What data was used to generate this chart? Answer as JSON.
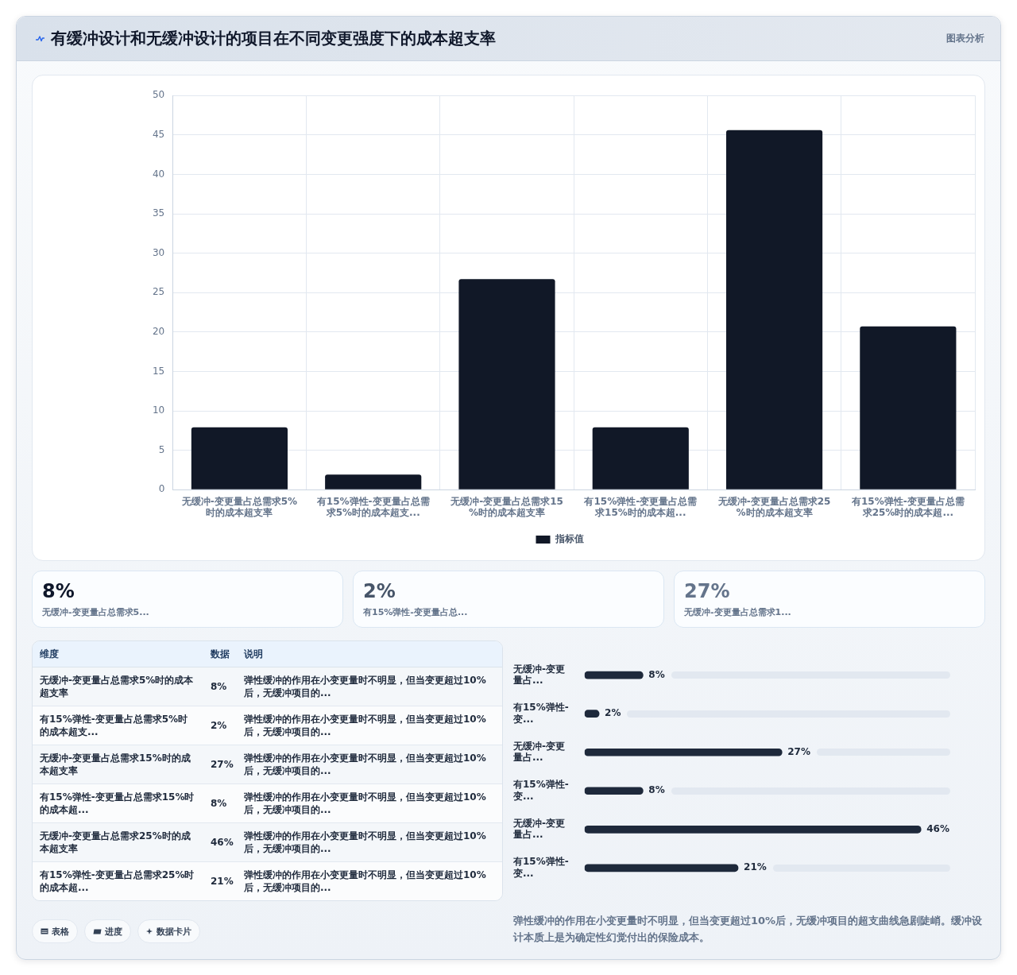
{
  "chart_data": [
    {
      "type": "bar",
      "title": "有缓冲设计和无缓冲设计的项目在不同变更强度下的成本超支率",
      "annotations": [
        "图表分析"
      ],
      "categories": [
        "无缓冲-变更量占总需求5%时的成本超支率",
        "有15%弹性-变更量占总需求5%时的成本超支...",
        "无缓冲-变更量占总需求15%时的成本超支率",
        "有15%弹性-变更量占总需求15%时的成本超...",
        "无缓冲-变更量占总需求25%时的成本超支率",
        "有15%弹性-变更量占总需求25%时的成本超..."
      ],
      "series": [
        {
          "name": "指标值",
          "color": "#111827",
          "values": [
            7.9,
            1.9,
            26.7,
            7.9,
            45.6,
            20.7
          ]
        }
      ],
      "ylim": [
        0,
        50
      ],
      "yticks": [
        0,
        5,
        10,
        15,
        20,
        25,
        30,
        35,
        40,
        45,
        50
      ],
      "grid": true,
      "legend": "bottom"
    },
    {
      "type": "other",
      "annotations": [
        "8%",
        "无缓冲-变更量占总需求5...",
        "2%",
        "有15%弹性-变更量占总...",
        "27%",
        "无缓冲-变更量占总需求1..."
      ]
    },
    {
      "type": "other",
      "annotations": [
        "维度",
        "数据",
        "说明",
        "无缓冲-变更量占总需求5%时的成本超支率",
        "8%",
        "弹性缓冲的作用在小变更量时不明显，但当变更超过10%后，无缓冲项目的...",
        "有15%弹性-变更量占总需求5%时的成本超支...",
        "2%",
        "弹性缓冲的作用在小变更量时不明显，但当变更超过10%后，无缓冲项目的...",
        "无缓冲-变更量占总需求15%时的成本超支率",
        "27%",
        "弹性缓冲的作用在小变更量时不明显，但当变更超过10%后，无缓冲项目的...",
        "有15%弹性-变更量占总需求15%时的成本超...",
        "8%",
        "弹性缓冲的作用在小变更量时不明显，但当变更超过10%后，无缓冲项目的...",
        "无缓冲-变更量占总需求25%时的成本超支率",
        "46%",
        "弹性缓冲的作用在小变更量时不明显，但当变更超过10%后，无缓冲项目的...",
        "有15%弹性-变更量占总需求25%时的成本超...",
        "21%",
        "弹性缓冲的作用在小变更量时不明显，但当变更超过10%后，无缓冲项目的..."
      ]
    },
    {
      "type": "bar",
      "orientation": "horizontal",
      "categories": [
        "无缓冲-变更量占...",
        "有15%弹性-变...",
        "无缓冲-变更量占...",
        "有15%弹性-变...",
        "无缓冲-变更量占...",
        "有15%弹性-变..."
      ],
      "values": [
        8,
        2,
        27,
        8,
        46,
        21
      ],
      "value_labels": [
        "8%",
        "2%",
        "27%",
        "8%",
        "46%",
        "21%"
      ],
      "color": "#1e293b",
      "tick_labels": "y",
      "annotations": [
        "弹性缓冲的作用在小变更量时不明显，但当变更超过10%后，无缓冲项目的超支曲线急剧陡峭。缓冲设计本质上是为确定性幻觉付出的保险成本。"
      ]
    },
    {
      "type": "other",
      "annotations": [
        "表格",
        "进度",
        "数据卡片"
      ]
    }
  ]
}
